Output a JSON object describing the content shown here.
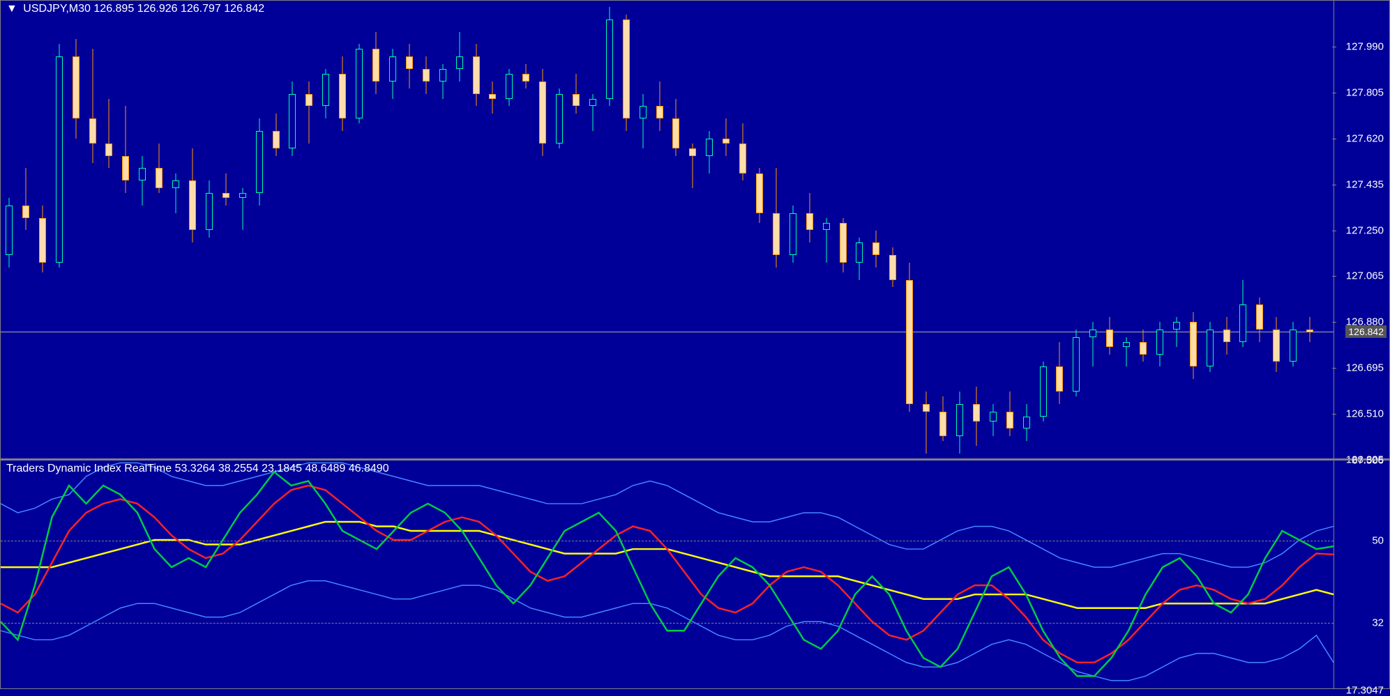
{
  "chart": {
    "symbol": "USDJPY,M30",
    "ohlc": [
      "126.895",
      "126.926",
      "126.797",
      "126.842"
    ],
    "background": "#000099",
    "grid_color": "#808080",
    "text_color": "#ffffff",
    "price_line_color": "#aaaaaa",
    "current_price": 126.842,
    "current_price_label": "126.842",
    "y_axis": {
      "min": 126.325,
      "max": 128.175,
      "ticks": [
        {
          "value": 127.99,
          "label": "127.990"
        },
        {
          "value": 127.805,
          "label": "127.805"
        },
        {
          "value": 127.62,
          "label": "127.620"
        },
        {
          "value": 127.435,
          "label": "127.435"
        },
        {
          "value": 127.25,
          "label": "127.250"
        },
        {
          "value": 127.065,
          "label": "127.065"
        },
        {
          "value": 126.88,
          "label": "126.880"
        },
        {
          "value": 126.695,
          "label": "126.695"
        },
        {
          "value": 126.51,
          "label": "126.510"
        },
        {
          "value": 126.325,
          "label": "126.325"
        }
      ]
    },
    "bull_color": "#00ffaa",
    "bull_fill": "#000099",
    "bear_color": "#ff9900",
    "bear_fill": "#ffddaa",
    "candle_width": 10,
    "candles": [
      {
        "o": 127.15,
        "h": 127.38,
        "l": 127.1,
        "c": 127.35
      },
      {
        "o": 127.35,
        "h": 127.5,
        "l": 127.25,
        "c": 127.3
      },
      {
        "o": 127.3,
        "h": 127.35,
        "l": 127.08,
        "c": 127.12
      },
      {
        "o": 127.12,
        "h": 128.0,
        "l": 127.1,
        "c": 127.95
      },
      {
        "o": 127.95,
        "h": 128.02,
        "l": 127.62,
        "c": 127.7
      },
      {
        "o": 127.7,
        "h": 127.98,
        "l": 127.52,
        "c": 127.6
      },
      {
        "o": 127.6,
        "h": 127.78,
        "l": 127.5,
        "c": 127.55
      },
      {
        "o": 127.55,
        "h": 127.75,
        "l": 127.4,
        "c": 127.45
      },
      {
        "o": 127.45,
        "h": 127.55,
        "l": 127.35,
        "c": 127.5
      },
      {
        "o": 127.5,
        "h": 127.6,
        "l": 127.4,
        "c": 127.42
      },
      {
        "o": 127.42,
        "h": 127.48,
        "l": 127.32,
        "c": 127.45
      },
      {
        "o": 127.45,
        "h": 127.58,
        "l": 127.2,
        "c": 127.25
      },
      {
        "o": 127.25,
        "h": 127.45,
        "l": 127.22,
        "c": 127.4
      },
      {
        "o": 127.4,
        "h": 127.48,
        "l": 127.35,
        "c": 127.38
      },
      {
        "o": 127.38,
        "h": 127.42,
        "l": 127.25,
        "c": 127.4
      },
      {
        "o": 127.4,
        "h": 127.7,
        "l": 127.35,
        "c": 127.65
      },
      {
        "o": 127.65,
        "h": 127.72,
        "l": 127.55,
        "c": 127.58
      },
      {
        "o": 127.58,
        "h": 127.85,
        "l": 127.55,
        "c": 127.8
      },
      {
        "o": 127.8,
        "h": 127.85,
        "l": 127.6,
        "c": 127.75
      },
      {
        "o": 127.75,
        "h": 127.9,
        "l": 127.7,
        "c": 127.88
      },
      {
        "o": 127.88,
        "h": 127.95,
        "l": 127.65,
        "c": 127.7
      },
      {
        "o": 127.7,
        "h": 128.0,
        "l": 127.68,
        "c": 127.98
      },
      {
        "o": 127.98,
        "h": 128.05,
        "l": 127.8,
        "c": 127.85
      },
      {
        "o": 127.85,
        "h": 127.98,
        "l": 127.78,
        "c": 127.95
      },
      {
        "o": 127.95,
        "h": 128.0,
        "l": 127.82,
        "c": 127.9
      },
      {
        "o": 127.9,
        "h": 127.95,
        "l": 127.8,
        "c": 127.85
      },
      {
        "o": 127.85,
        "h": 127.92,
        "l": 127.78,
        "c": 127.9
      },
      {
        "o": 127.9,
        "h": 128.05,
        "l": 127.85,
        "c": 127.95
      },
      {
        "o": 127.95,
        "h": 128.0,
        "l": 127.75,
        "c": 127.8
      },
      {
        "o": 127.8,
        "h": 127.85,
        "l": 127.72,
        "c": 127.78
      },
      {
        "o": 127.78,
        "h": 127.9,
        "l": 127.75,
        "c": 127.88
      },
      {
        "o": 127.88,
        "h": 127.92,
        "l": 127.82,
        "c": 127.85
      },
      {
        "o": 127.85,
        "h": 127.9,
        "l": 127.55,
        "c": 127.6
      },
      {
        "o": 127.6,
        "h": 127.82,
        "l": 127.58,
        "c": 127.8
      },
      {
        "o": 127.8,
        "h": 127.88,
        "l": 127.72,
        "c": 127.75
      },
      {
        "o": 127.75,
        "h": 127.8,
        "l": 127.65,
        "c": 127.78
      },
      {
        "o": 127.78,
        "h": 128.15,
        "l": 127.75,
        "c": 128.1
      },
      {
        "o": 128.1,
        "h": 128.12,
        "l": 127.65,
        "c": 127.7
      },
      {
        "o": 127.7,
        "h": 127.8,
        "l": 127.58,
        "c": 127.75
      },
      {
        "o": 127.75,
        "h": 127.85,
        "l": 127.65,
        "c": 127.7
      },
      {
        "o": 127.7,
        "h": 127.78,
        "l": 127.55,
        "c": 127.58
      },
      {
        "o": 127.58,
        "h": 127.6,
        "l": 127.42,
        "c": 127.55
      },
      {
        "o": 127.55,
        "h": 127.65,
        "l": 127.48,
        "c": 127.62
      },
      {
        "o": 127.62,
        "h": 127.7,
        "l": 127.55,
        "c": 127.6
      },
      {
        "o": 127.6,
        "h": 127.68,
        "l": 127.45,
        "c": 127.48
      },
      {
        "o": 127.48,
        "h": 127.5,
        "l": 127.28,
        "c": 127.32
      },
      {
        "o": 127.32,
        "h": 127.5,
        "l": 127.1,
        "c": 127.15
      },
      {
        "o": 127.15,
        "h": 127.35,
        "l": 127.12,
        "c": 127.32
      },
      {
        "o": 127.32,
        "h": 127.4,
        "l": 127.2,
        "c": 127.25
      },
      {
        "o": 127.25,
        "h": 127.3,
        "l": 127.12,
        "c": 127.28
      },
      {
        "o": 127.28,
        "h": 127.3,
        "l": 127.08,
        "c": 127.12
      },
      {
        "o": 127.12,
        "h": 127.22,
        "l": 127.05,
        "c": 127.2
      },
      {
        "o": 127.2,
        "h": 127.25,
        "l": 127.1,
        "c": 127.15
      },
      {
        "o": 127.15,
        "h": 127.18,
        "l": 127.02,
        "c": 127.05
      },
      {
        "o": 127.05,
        "h": 127.12,
        "l": 126.52,
        "c": 126.55
      },
      {
        "o": 126.55,
        "h": 126.6,
        "l": 126.35,
        "c": 126.52
      },
      {
        "o": 126.52,
        "h": 126.58,
        "l": 126.4,
        "c": 126.42
      },
      {
        "o": 126.42,
        "h": 126.6,
        "l": 126.35,
        "c": 126.55
      },
      {
        "o": 126.55,
        "h": 126.62,
        "l": 126.38,
        "c": 126.48
      },
      {
        "o": 126.48,
        "h": 126.55,
        "l": 126.42,
        "c": 126.52
      },
      {
        "o": 126.52,
        "h": 126.6,
        "l": 126.42,
        "c": 126.45
      },
      {
        "o": 126.45,
        "h": 126.55,
        "l": 126.4,
        "c": 126.5
      },
      {
        "o": 126.5,
        "h": 126.72,
        "l": 126.48,
        "c": 126.7
      },
      {
        "o": 126.7,
        "h": 126.8,
        "l": 126.55,
        "c": 126.6
      },
      {
        "o": 126.6,
        "h": 126.85,
        "l": 126.58,
        "c": 126.82
      },
      {
        "o": 126.82,
        "h": 126.88,
        "l": 126.7,
        "c": 126.85
      },
      {
        "o": 126.85,
        "h": 126.9,
        "l": 126.75,
        "c": 126.78
      },
      {
        "o": 126.78,
        "h": 126.82,
        "l": 126.7,
        "c": 126.8
      },
      {
        "o": 126.8,
        "h": 126.85,
        "l": 126.72,
        "c": 126.75
      },
      {
        "o": 126.75,
        "h": 126.88,
        "l": 126.7,
        "c": 126.85
      },
      {
        "o": 126.85,
        "h": 126.9,
        "l": 126.78,
        "c": 126.88
      },
      {
        "o": 126.88,
        "h": 126.92,
        "l": 126.65,
        "c": 126.7
      },
      {
        "o": 126.7,
        "h": 126.88,
        "l": 126.68,
        "c": 126.85
      },
      {
        "o": 126.85,
        "h": 126.9,
        "l": 126.75,
        "c": 126.8
      },
      {
        "o": 126.8,
        "h": 127.05,
        "l": 126.78,
        "c": 126.95
      },
      {
        "o": 126.95,
        "h": 126.98,
        "l": 126.8,
        "c": 126.85
      },
      {
        "o": 126.85,
        "h": 126.9,
        "l": 126.68,
        "c": 126.72
      },
      {
        "o": 126.72,
        "h": 126.88,
        "l": 126.7,
        "c": 126.85
      },
      {
        "o": 126.85,
        "h": 126.9,
        "l": 126.8,
        "c": 126.84
      }
    ]
  },
  "indicator": {
    "title": "Traders Dynamic Index RealTime",
    "values": [
      "53.3264",
      "38.2554",
      "23.1845",
      "48.6489",
      "46.8490"
    ],
    "y_axis": {
      "min": 17.3,
      "max": 67.51,
      "ticks": [
        {
          "value": 67.506,
          "label": "67.506"
        },
        {
          "value": 50,
          "label": "50"
        },
        {
          "value": 32,
          "label": "32"
        },
        {
          "value": 17.3047,
          "label": "17.3047"
        }
      ]
    },
    "dashed_levels": [
      50,
      32
    ],
    "lines": {
      "upper_band": {
        "color": "#4488ff",
        "width": 1.5,
        "data": [
          58,
          56,
          57,
          59,
          60,
          64,
          66,
          67,
          67,
          66,
          64,
          63,
          62,
          62,
          63,
          64,
          65,
          66,
          67,
          67,
          67,
          66,
          65,
          64,
          63,
          62,
          62,
          62,
          62,
          61,
          60,
          59,
          58,
          58,
          58,
          59,
          60,
          62,
          63,
          62,
          60,
          58,
          56,
          55,
          54,
          54,
          55,
          56,
          56,
          55,
          53,
          51,
          49,
          48,
          48,
          50,
          52,
          53,
          53,
          52,
          50,
          48,
          46,
          45,
          44,
          44,
          45,
          46,
          47,
          47,
          46,
          45,
          44,
          44,
          45,
          47,
          50,
          52,
          53
        ]
      },
      "lower_band": {
        "color": "#4488ff",
        "width": 1.5,
        "data": [
          30,
          29,
          28,
          28,
          29,
          31,
          33,
          35,
          36,
          36,
          35,
          34,
          33,
          33,
          34,
          36,
          38,
          40,
          41,
          41,
          40,
          39,
          38,
          37,
          37,
          38,
          39,
          40,
          40,
          39,
          37,
          35,
          34,
          33,
          33,
          34,
          35,
          36,
          36,
          35,
          33,
          31,
          29,
          28,
          28,
          29,
          31,
          32,
          32,
          31,
          29,
          27,
          25,
          23,
          22,
          22,
          23,
          25,
          27,
          28,
          27,
          25,
          23,
          21,
          20,
          19,
          19,
          20,
          22,
          24,
          25,
          25,
          24,
          23,
          23,
          24,
          26,
          29,
          23
        ]
      },
      "yellow": {
        "color": "#ffff00",
        "width": 2.5,
        "data": [
          44,
          44,
          44,
          44,
          45,
          46,
          47,
          48,
          49,
          50,
          50,
          50,
          49,
          49,
          49,
          50,
          51,
          52,
          53,
          54,
          54,
          54,
          53,
          53,
          52,
          52,
          52,
          52,
          52,
          51,
          50,
          49,
          48,
          47,
          47,
          47,
          47,
          48,
          48,
          48,
          47,
          46,
          45,
          44,
          43,
          42,
          42,
          42,
          42,
          42,
          41,
          40,
          39,
          38,
          37,
          37,
          37,
          38,
          38,
          38,
          38,
          37,
          36,
          35,
          35,
          35,
          35,
          35,
          36,
          36,
          36,
          36,
          36,
          36,
          36,
          37,
          38,
          39,
          38
        ]
      },
      "red": {
        "color": "#ff2222",
        "width": 2.5,
        "data": [
          36,
          34,
          38,
          45,
          52,
          56,
          58,
          59,
          58,
          55,
          51,
          48,
          46,
          47,
          50,
          54,
          58,
          61,
          62,
          61,
          58,
          55,
          52,
          50,
          50,
          52,
          54,
          55,
          54,
          51,
          47,
          43,
          41,
          42,
          45,
          48,
          51,
          53,
          52,
          48,
          43,
          38,
          35,
          34,
          36,
          40,
          43,
          44,
          43,
          40,
          36,
          32,
          29,
          28,
          30,
          34,
          38,
          40,
          40,
          37,
          33,
          28,
          25,
          23,
          23,
          25,
          28,
          32,
          36,
          39,
          40,
          39,
          37,
          36,
          37,
          40,
          44,
          47,
          46.8
        ]
      },
      "green": {
        "color": "#00cc44",
        "width": 2.5,
        "data": [
          32,
          28,
          40,
          55,
          62,
          58,
          62,
          60,
          56,
          48,
          44,
          46,
          44,
          50,
          56,
          60,
          65,
          62,
          63,
          58,
          52,
          50,
          48,
          52,
          56,
          58,
          56,
          52,
          46,
          40,
          36,
          40,
          46,
          52,
          54,
          56,
          52,
          44,
          36,
          30,
          30,
          36,
          42,
          46,
          44,
          40,
          34,
          28,
          26,
          30,
          38,
          42,
          38,
          30,
          24,
          22,
          26,
          34,
          42,
          44,
          38,
          30,
          24,
          20,
          20,
          24,
          30,
          38,
          44,
          46,
          42,
          36,
          34,
          38,
          46,
          52,
          50,
          48,
          48.6
        ]
      }
    }
  }
}
